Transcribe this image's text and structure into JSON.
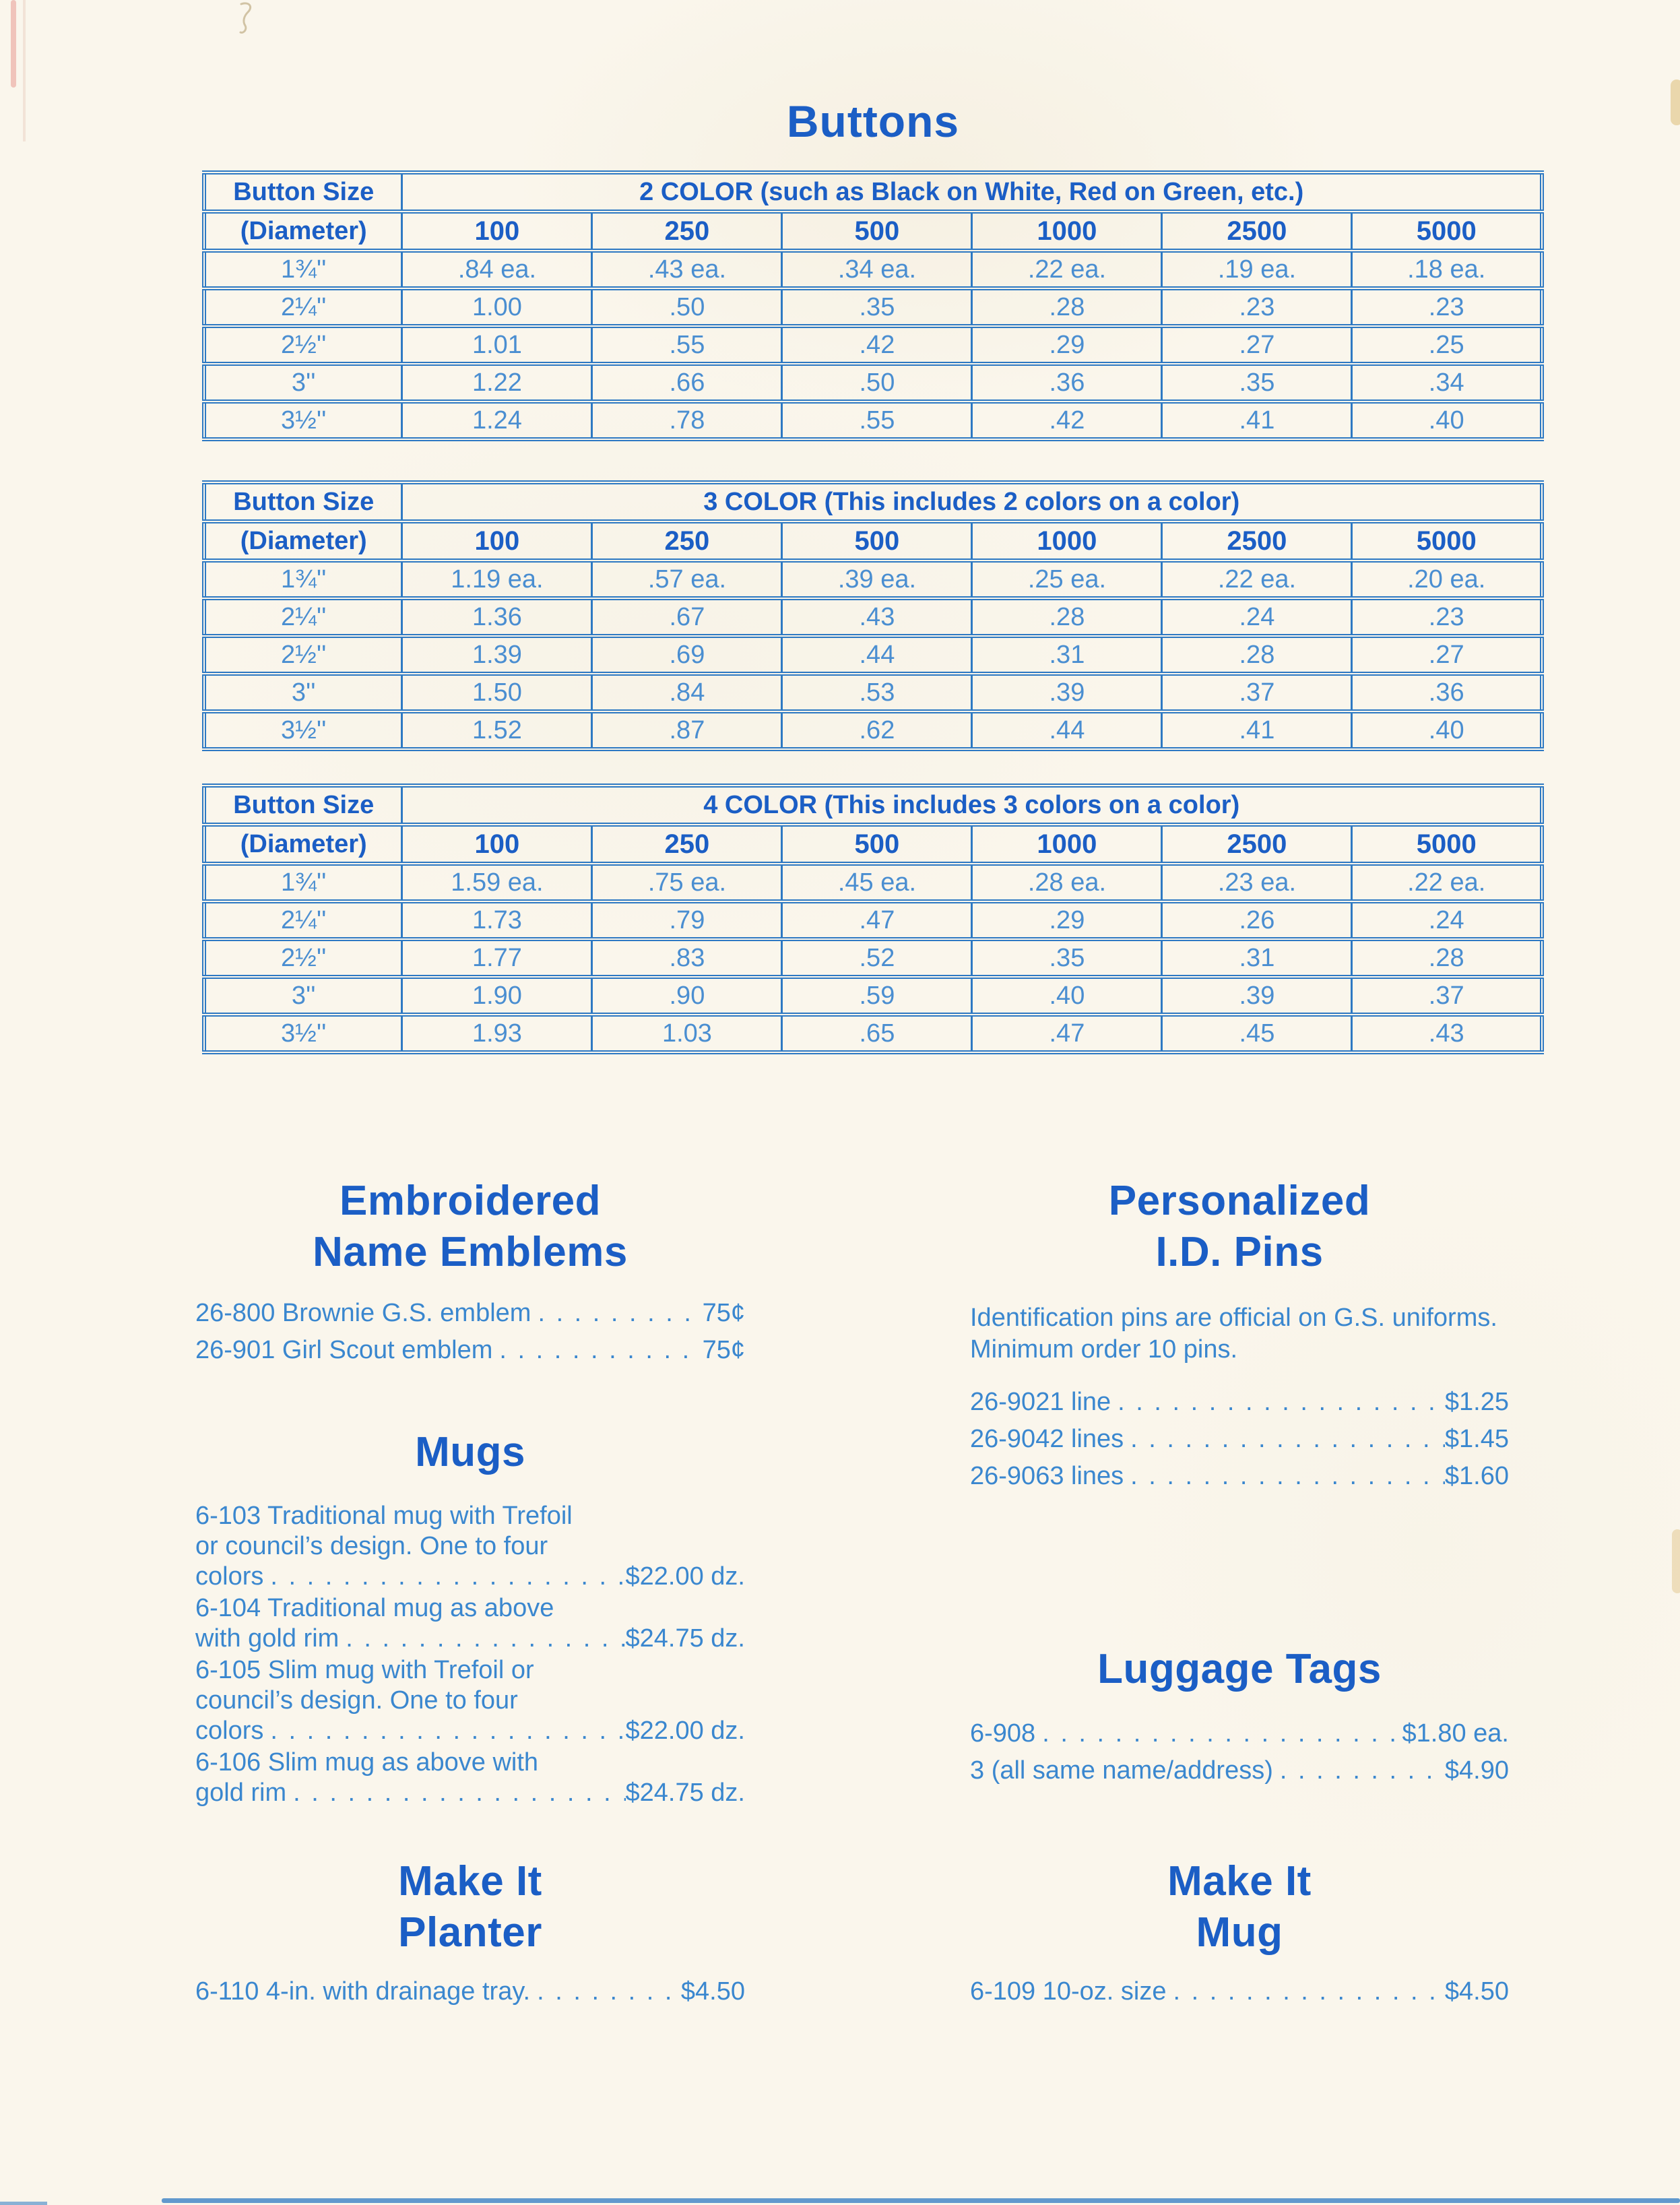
{
  "title": "Buttons",
  "leader": ". . . . . . . . . . . . . . . . . . . . . . . . . . . . . . . . . . . . . . . . . . . . . . . . . . . . . . . . . . . .",
  "colors": {
    "background": "#faf6ec",
    "heading_blue": "#1b5ec5",
    "table_blue": "#2e79c3",
    "data_blue": "#4a8ed1",
    "body_blue": "#3a87cf"
  },
  "tables": [
    {
      "corner_line1": "Button Size",
      "corner_line2": "(Diameter)",
      "span_header": "2 COLOR (such as Black on White, Red on Green, etc.)",
      "quantities": [
        "100",
        "250",
        "500",
        "1000",
        "2500",
        "5000"
      ],
      "rows": [
        {
          "size": "1¾''",
          "prices": [
            ".84 ea.",
            ".43 ea.",
            ".34 ea.",
            ".22 ea.",
            ".19 ea.",
            ".18 ea."
          ]
        },
        {
          "size": "2¼''",
          "prices": [
            "1.00",
            ".50",
            ".35",
            ".28",
            ".23",
            ".23"
          ]
        },
        {
          "size": "2½''",
          "prices": [
            "1.01",
            ".55",
            ".42",
            ".29",
            ".27",
            ".25"
          ]
        },
        {
          "size": "3''",
          "prices": [
            "1.22",
            ".66",
            ".50",
            ".36",
            ".35",
            ".34"
          ]
        },
        {
          "size": "3½''",
          "prices": [
            "1.24",
            ".78",
            ".55",
            ".42",
            ".41",
            ".40"
          ]
        }
      ]
    },
    {
      "corner_line1": "Button Size",
      "corner_line2": "(Diameter)",
      "span_header": "3 COLOR (This includes 2 colors on a color)",
      "quantities": [
        "100",
        "250",
        "500",
        "1000",
        "2500",
        "5000"
      ],
      "rows": [
        {
          "size": "1¾''",
          "prices": [
            "1.19 ea.",
            ".57 ea.",
            ".39 ea.",
            ".25 ea.",
            ".22 ea.",
            ".20 ea."
          ]
        },
        {
          "size": "2¼''",
          "prices": [
            "1.36",
            ".67",
            ".43",
            ".28",
            ".24",
            ".23"
          ]
        },
        {
          "size": "2½''",
          "prices": [
            "1.39",
            ".69",
            ".44",
            ".31",
            ".28",
            ".27"
          ]
        },
        {
          "size": "3''",
          "prices": [
            "1.50",
            ".84",
            ".53",
            ".39",
            ".37",
            ".36"
          ]
        },
        {
          "size": "3½''",
          "prices": [
            "1.52",
            ".87",
            ".62",
            ".44",
            ".41",
            ".40"
          ]
        }
      ]
    },
    {
      "corner_line1": "Button Size",
      "corner_line2": "(Diameter)",
      "span_header": "4 COLOR (This includes 3 colors on a color)",
      "quantities": [
        "100",
        "250",
        "500",
        "1000",
        "2500",
        "5000"
      ],
      "rows": [
        {
          "size": "1¾''",
          "prices": [
            "1.59 ea.",
            ".75 ea.",
            ".45 ea.",
            ".28 ea.",
            ".23 ea.",
            ".22 ea."
          ]
        },
        {
          "size": "2¼''",
          "prices": [
            "1.73",
            ".79",
            ".47",
            ".29",
            ".26",
            ".24"
          ]
        },
        {
          "size": "2½''",
          "prices": [
            "1.77",
            ".83",
            ".52",
            ".35",
            ".31",
            ".28"
          ]
        },
        {
          "size": "3''",
          "prices": [
            "1.90",
            ".90",
            ".59",
            ".40",
            ".39",
            ".37"
          ]
        },
        {
          "size": "3½''",
          "prices": [
            "1.93",
            "1.03",
            ".65",
            ".47",
            ".45",
            ".43"
          ]
        }
      ]
    }
  ],
  "sections": {
    "emblems": {
      "title_lines": [
        "Embroidered",
        "Name Emblems"
      ],
      "items": [
        {
          "text": "26-800 Brownie G.S. emblem",
          "price": "75¢"
        },
        {
          "text": "26-901 Girl Scout emblem",
          "price": "75¢"
        }
      ]
    },
    "id_pins": {
      "title_lines": [
        "Personalized",
        "I.D. Pins"
      ],
      "note_lines": [
        "Identification pins are official on G.S. uniforms.",
        "Minimum order 10 pins."
      ],
      "items": [
        {
          "code": "26-902",
          "desc": "1 line",
          "price": "$1.25"
        },
        {
          "code": "26-904",
          "desc": "2 lines",
          "price": "$1.45"
        },
        {
          "code": "26-906",
          "desc": "3 lines",
          "price": "$1.60"
        }
      ]
    },
    "mugs": {
      "title": "Mugs",
      "items": [
        {
          "line1": "6-103 Traditional mug with Trefoil",
          "line2": "or council’s design. One to four",
          "tail": "colors",
          "price": "$22.00 dz."
        },
        {
          "line1": "6-104 Traditional mug as above",
          "tail": "with gold rim",
          "price": "$24.75 dz."
        },
        {
          "line1": "6-105 Slim mug with Trefoil or",
          "line2": "council’s design. One to four",
          "tail": "colors",
          "price": "$22.00 dz."
        },
        {
          "line1": "6-106 Slim mug as above with",
          "tail": "gold rim",
          "price": "$24.75 dz."
        }
      ]
    },
    "luggage": {
      "title": "Luggage Tags",
      "items": [
        {
          "text": "6-908",
          "price": "$1.80 ea."
        },
        {
          "text": "3  (all same name/address)",
          "price": "$4.90"
        }
      ]
    },
    "planter": {
      "title_lines": [
        "Make It",
        "Planter"
      ],
      "item": {
        "text": "6-110  4-in. with drainage tray.",
        "price": "$4.50"
      }
    },
    "makeit_mug": {
      "title_lines": [
        "Make It",
        "Mug"
      ],
      "item": {
        "text": "6-109  10-oz. size",
        "price": "$4.50"
      }
    }
  }
}
